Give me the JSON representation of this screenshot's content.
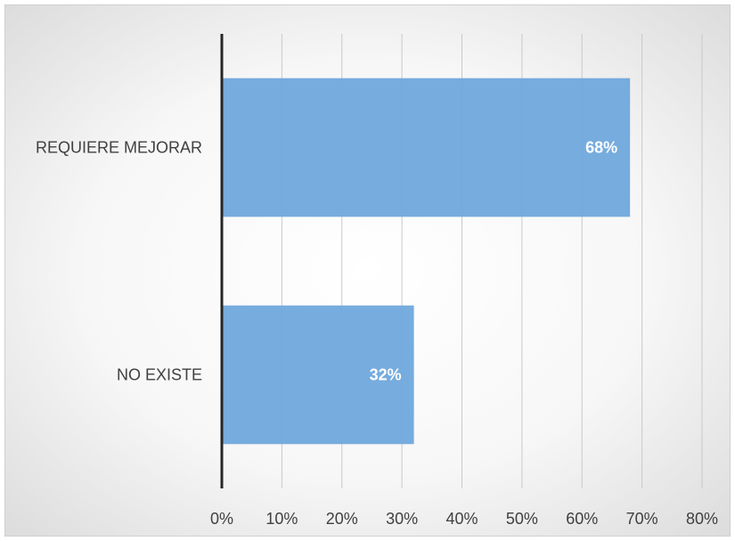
{
  "chart_data": {
    "type": "bar",
    "orientation": "horizontal",
    "categories": [
      "REQUIERE MEJORAR",
      "NO EXISTE"
    ],
    "values": [
      68,
      32
    ],
    "data_labels": [
      "68%",
      "32%"
    ],
    "xlim": [
      0,
      80
    ],
    "x_ticks": [
      0,
      10,
      20,
      30,
      40,
      50,
      60,
      70,
      80
    ],
    "x_tick_labels": [
      "0%",
      "10%",
      "20%",
      "30%",
      "40%",
      "50%",
      "60%",
      "70%",
      "80%"
    ],
    "title": "",
    "xlabel": "",
    "ylabel": "",
    "grid": "vertical",
    "legend": "none",
    "bar_color": "#6fa8dc"
  }
}
